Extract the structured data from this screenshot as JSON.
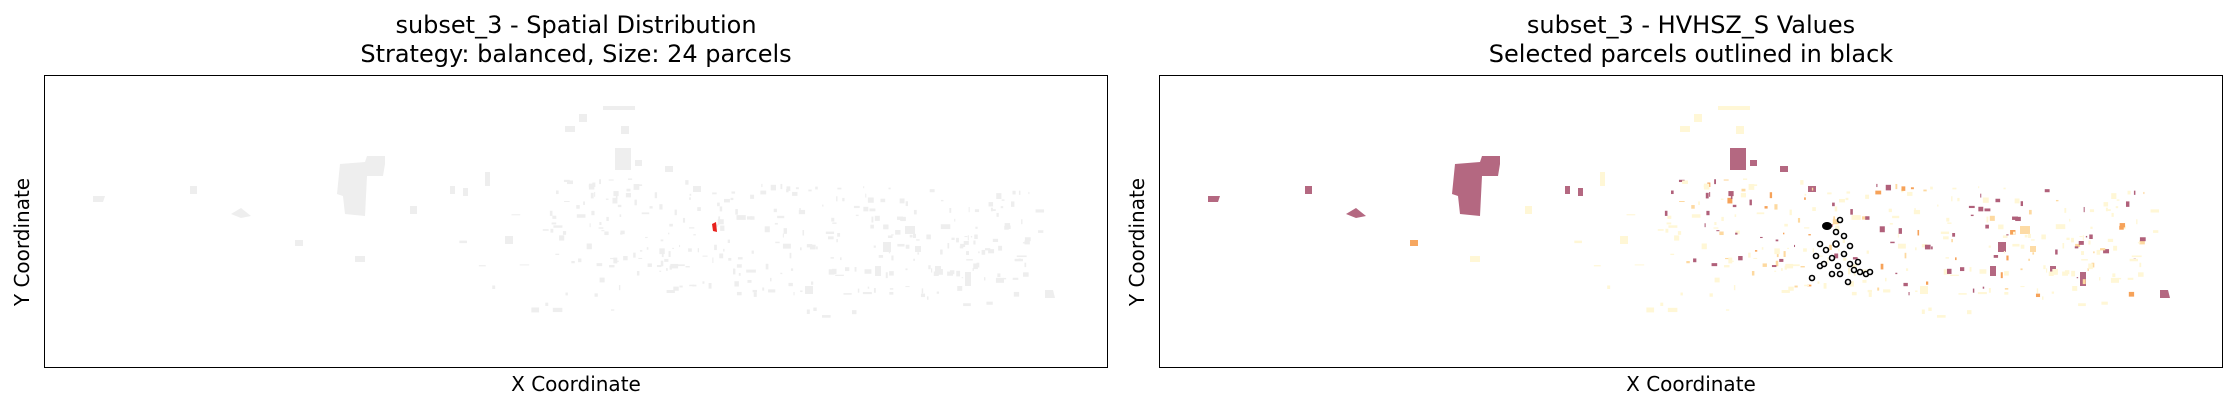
{
  "chart_data": [
    {
      "type": "map",
      "title": "subset_3 - Spatial Distribution",
      "subtitle": "Strategy: balanced, Size: 24 parcels",
      "xlabel": "X Coordinate",
      "ylabel": "Y Coordinate",
      "xticks": [],
      "yticks": [],
      "grid": false,
      "colors": {
        "background_parcels": "#eeeeee",
        "selected_parcels": "#e8211c"
      }
    },
    {
      "type": "map",
      "title": "subset_3 - HVHSZ_S Values",
      "subtitle": "Selected parcels outlined in black",
      "xlabel": "X Coordinate",
      "ylabel": "Y Coordinate",
      "xticks": [],
      "yticks": [],
      "grid": false,
      "colors": {
        "low": "#fff7d6",
        "mid": "#fdd9a0",
        "orange": "#f6a259",
        "high": "#b0607a",
        "selected_outline": "#000000"
      }
    }
  ]
}
